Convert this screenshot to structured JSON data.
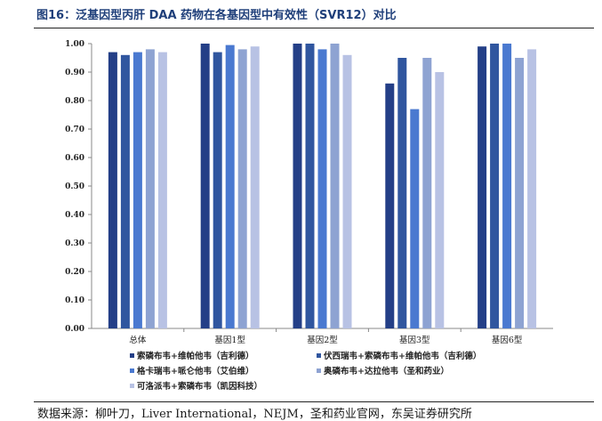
{
  "figure_title": "图16：泛基因型丙肝 DAA 药物在各基因型中有效性（SVR12）对比",
  "source_note": "数据来源：柳叶刀，Liver International，NEJM，圣和药业官网，东吴证券研究所",
  "chart_data": {
    "type": "bar",
    "categories": [
      "总体",
      "基因1型",
      "基因2型",
      "基因3型",
      "基因6型"
    ],
    "series": [
      {
        "name": "索磷布韦+维帕他韦（吉利德）",
        "color": "#243f87",
        "values": [
          0.97,
          1.0,
          1.0,
          0.86,
          0.99
        ]
      },
      {
        "name": "伏西瑞韦+索磷布韦+维帕他韦（吉利德）",
        "color": "#30569f",
        "values": [
          0.96,
          0.97,
          1.0,
          0.95,
          1.0
        ]
      },
      {
        "name": "格卡瑞韦+哌仑他韦（艾伯维）",
        "color": "#4a79d0",
        "values": [
          0.97,
          0.995,
          0.98,
          0.77,
          1.0
        ]
      },
      {
        "name": "奥磷布韦+达拉他韦（圣和药业）",
        "color": "#8ea3d2",
        "values": [
          0.98,
          0.98,
          1.0,
          0.95,
          0.95
        ]
      },
      {
        "name": "可洛派韦+索磷布韦（凯因科技）",
        "color": "#b8c2e4",
        "values": [
          0.97,
          0.99,
          0.96,
          0.9,
          0.98
        ]
      }
    ],
    "ylim": [
      0,
      1.0
    ],
    "yticks": [
      "0.00",
      "0.10",
      "0.20",
      "0.30",
      "0.40",
      "0.50",
      "0.60",
      "0.70",
      "0.80",
      "0.90",
      "1.00"
    ],
    "grid": false,
    "legend_position": "bottom"
  }
}
